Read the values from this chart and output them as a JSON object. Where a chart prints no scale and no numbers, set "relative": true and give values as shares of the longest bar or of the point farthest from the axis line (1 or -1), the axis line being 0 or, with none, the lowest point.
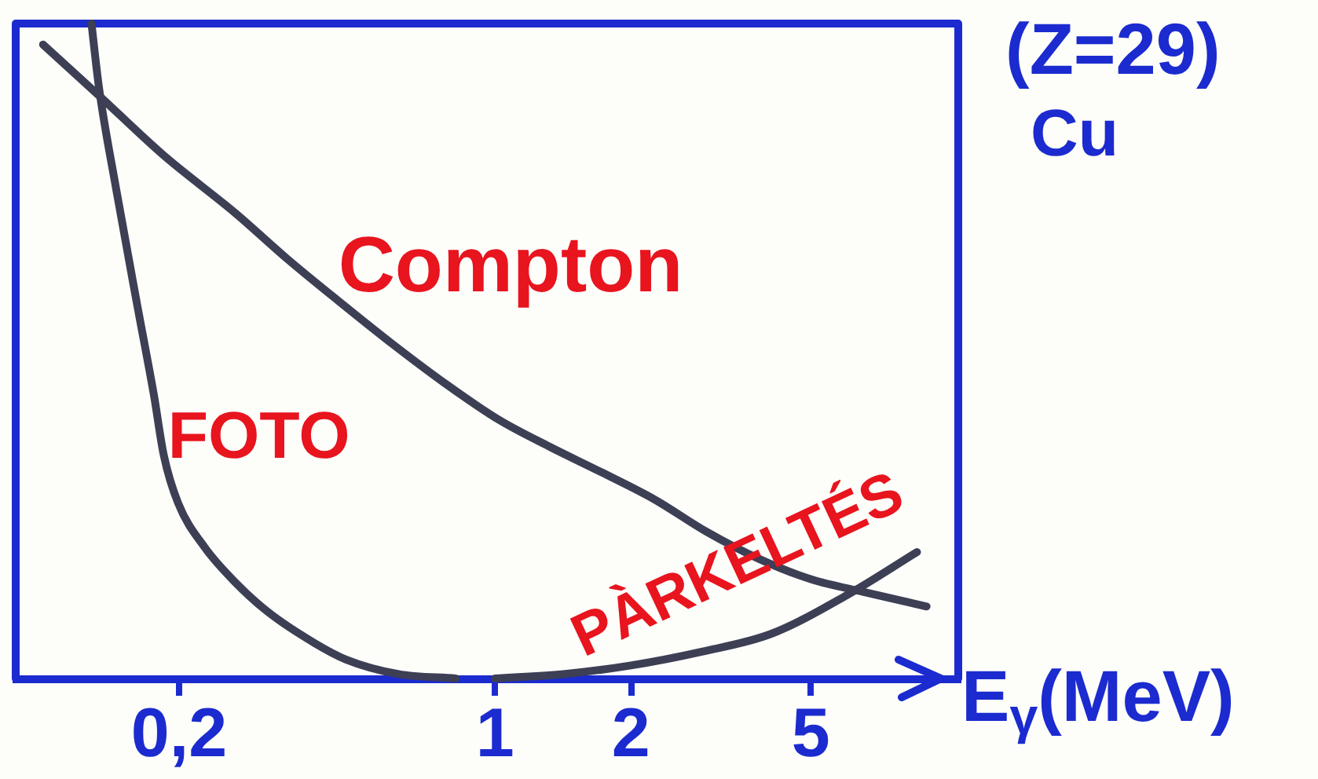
{
  "chart_data": {
    "type": "line",
    "relative": true,
    "log": "x",
    "xlabel": "E$_{γ}$(MeV)",
    "xlim": [
      0.087,
      10.6
    ],
    "xticks": [
      {
        "value": 0.2,
        "label": "0,2"
      },
      1,
      2,
      5
    ],
    "annotations": [
      "(Z=29)",
      "Cu"
    ],
    "series": [
      {
        "name": "Compton",
        "color": "#3d3f55",
        "x": [
          0.1,
          0.133,
          0.184,
          0.267,
          0.348,
          0.457,
          0.595,
          0.774,
          1.02,
          1.32,
          1.72,
          2.26,
          2.94,
          3.83,
          5.03,
          6.55,
          9.02
        ],
        "values": [
          0.968,
          0.89,
          0.8,
          0.71,
          0.64,
          0.573,
          0.51,
          0.451,
          0.395,
          0.354,
          0.315,
          0.273,
          0.224,
          0.183,
          0.151,
          0.132,
          0.11
        ]
      },
      {
        "name": "FOTO",
        "color": "#3d3f55",
        "x": [
          0.128,
          0.133,
          0.145,
          0.162,
          0.176,
          0.185,
          0.199,
          0.228,
          0.267,
          0.314,
          0.399,
          0.468,
          0.609,
          0.819
        ],
        "values": [
          1,
          0.902,
          0.749,
          0.566,
          0.432,
          0.341,
          0.268,
          0.2,
          0.146,
          0.102,
          0.054,
          0.029,
          0.007,
          0
        ]
      },
      {
        "name": "PÀRKELTÉS",
        "color": "#3d3f55",
        "x": [
          1.0,
          1.43,
          2.0,
          2.87,
          4.08,
          6.0,
          8.59
        ],
        "values": [
          0,
          0.007,
          0.02,
          0.041,
          0.068,
          0.127,
          0.193
        ]
      }
    ]
  }
}
